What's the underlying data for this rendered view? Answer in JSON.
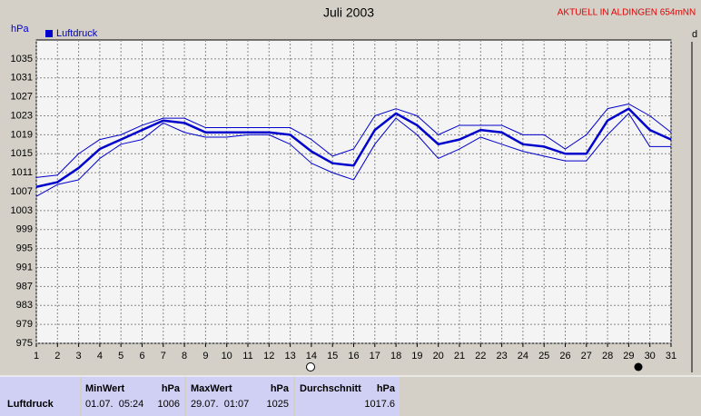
{
  "chart_data": {
    "type": "line",
    "title": "Juli 2003",
    "y_label": "hPa",
    "right_label": "d",
    "x": [
      1,
      2,
      3,
      4,
      5,
      6,
      7,
      8,
      9,
      10,
      11,
      12,
      13,
      14,
      15,
      16,
      17,
      18,
      19,
      20,
      21,
      22,
      23,
      24,
      25,
      26,
      27,
      28,
      29,
      30,
      31
    ],
    "xlim": [
      1,
      31
    ],
    "xticks": [
      1,
      2,
      3,
      4,
      5,
      6,
      7,
      8,
      9,
      10,
      11,
      12,
      13,
      14,
      15,
      16,
      17,
      18,
      19,
      20,
      21,
      22,
      23,
      24,
      25,
      26,
      27,
      28,
      29,
      30,
      31
    ],
    "ylim": [
      975,
      1039
    ],
    "yticks": [
      975,
      979,
      983,
      987,
      991,
      995,
      999,
      1003,
      1007,
      1011,
      1015,
      1019,
      1023,
      1027,
      1031,
      1035
    ],
    "grid": true,
    "legend": "top-left",
    "series": [
      {
        "name": "Luftdruck",
        "color": "#0000cc",
        "values": [
          1008,
          1009,
          1012,
          1016,
          1018,
          1020,
          1022,
          1021.5,
          1019.5,
          1019.5,
          1019.5,
          1019.5,
          1019,
          1015.5,
          1013,
          1012.5,
          1020,
          1023.5,
          1021,
          1017,
          1018,
          1020,
          1019.5,
          1017,
          1016.5,
          1015,
          1015,
          1022,
          1024.5,
          1020,
          1018
        ]
      },
      {
        "color": "#0000cc",
        "values": [
          1010,
          1010.5,
          1015,
          1018,
          1019,
          1021,
          1022.5,
          1022.5,
          1020.5,
          1020.5,
          1020.5,
          1020.5,
          1020.5,
          1018,
          1014.5,
          1016,
          1023,
          1024.5,
          1023,
          1019,
          1021,
          1021,
          1021,
          1019,
          1019,
          1016,
          1019,
          1024.5,
          1025.5,
          1023,
          1019.5
        ]
      },
      {
        "color": "#0000cc",
        "values": [
          1006,
          1008.5,
          1009.5,
          1014,
          1017,
          1018,
          1021.5,
          1019.5,
          1018.5,
          1018.5,
          1019,
          1019,
          1017,
          1013,
          1011,
          1009.5,
          1017,
          1022.5,
          1019,
          1014,
          1016,
          1018.5,
          1017,
          1015.5,
          1014.5,
          1013.5,
          1013.5,
          1019,
          1023.5,
          1016.5,
          1016.5
        ]
      }
    ]
  },
  "header": {
    "status": "AKTUELL IN ALDINGEN 654mNN"
  },
  "table": {
    "headers": [
      "MinWert",
      "hPa",
      "MaxWert",
      "hPa",
      "Durchschnitt",
      "hPa"
    ],
    "rows": [
      [
        "Luftdruck",
        "01.07.  05:24",
        "1006",
        "29.07.  01:07",
        "1025",
        "1017.6"
      ]
    ]
  }
}
